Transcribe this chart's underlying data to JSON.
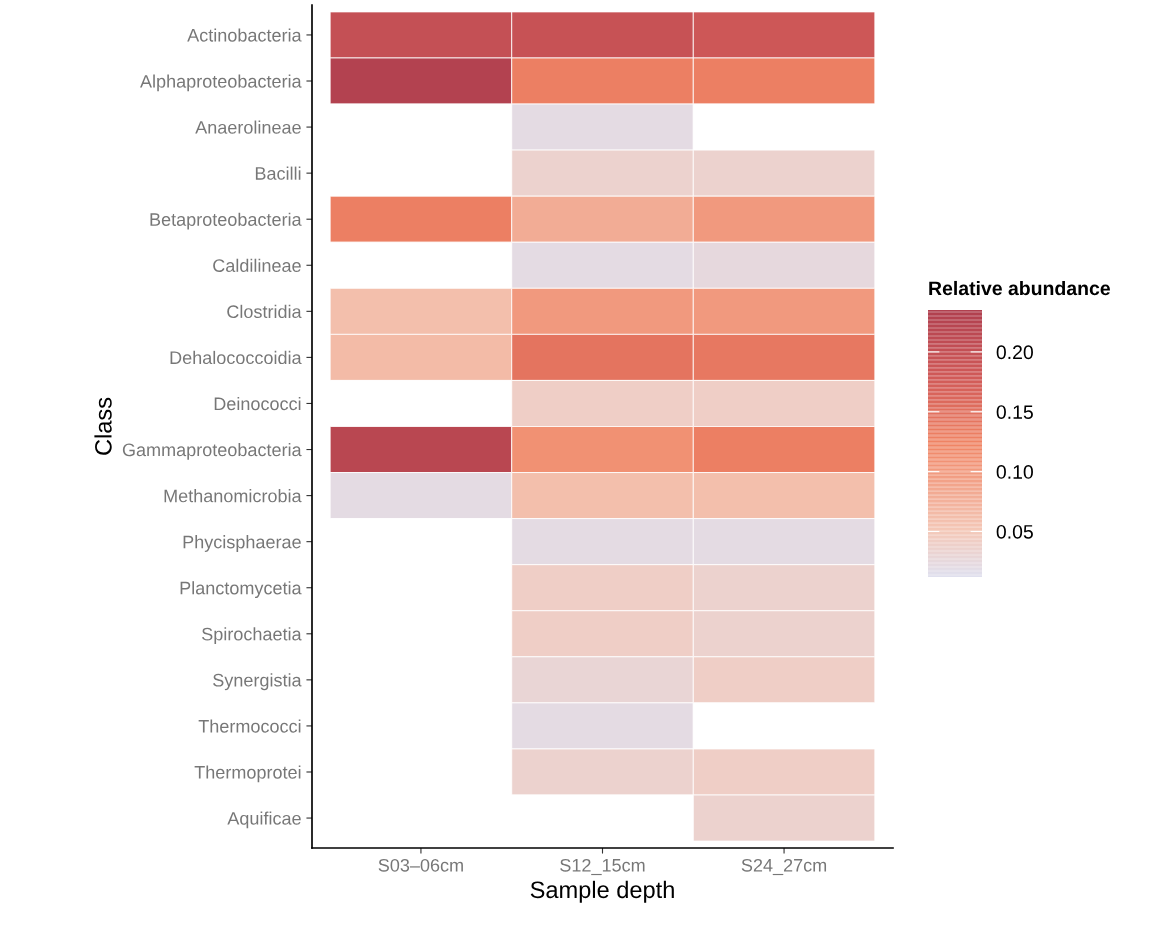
{
  "chart_data": {
    "type": "heatmap",
    "xlabel": "Sample depth",
    "ylabel": "Class",
    "clabel": "Relative abundance",
    "categories": [
      "S03–06cm",
      "S12_15cm",
      "S24_27cm"
    ],
    "y_categories": [
      "Actinobacteria",
      "Alphaproteobacteria",
      "Anaerolineae",
      "Bacilli",
      "Betaproteobacteria",
      "Caldilineae",
      "Clostridia",
      "Dehalococcoidia",
      "Deinococci",
      "Gammaproteobacteria",
      "Methanomicrobia",
      "Phycisphaerae",
      "Planctomycetia",
      "Spirochaetia",
      "Synergistia",
      "Thermococci",
      "Thermoprotei",
      "Aquificae"
    ],
    "cells": [
      [
        0.2,
        0.195,
        0.185
      ],
      [
        0.23,
        0.13,
        0.13
      ],
      [
        null,
        0.02,
        null
      ],
      [
        null,
        0.035,
        0.035
      ],
      [
        0.13,
        0.08,
        0.1
      ],
      [
        null,
        0.02,
        0.025
      ],
      [
        0.06,
        0.1,
        0.1
      ],
      [
        0.065,
        0.145,
        0.14
      ],
      [
        null,
        0.04,
        0.04
      ],
      [
        0.22,
        0.11,
        0.13
      ],
      [
        0.02,
        0.06,
        0.06
      ],
      [
        null,
        0.02,
        0.02
      ],
      [
        null,
        0.04,
        0.035
      ],
      [
        null,
        0.04,
        0.035
      ],
      [
        null,
        0.03,
        0.04
      ],
      [
        null,
        0.02,
        null
      ],
      [
        null,
        0.035,
        0.04
      ],
      [
        null,
        null,
        0.035
      ]
    ],
    "clim": [
      0.012,
      0.235
    ],
    "cticks": [
      {
        "value": 0.05,
        "label": "0.05"
      },
      {
        "value": 0.1,
        "label": "0.10"
      },
      {
        "value": 0.15,
        "label": "0.15"
      },
      {
        "value": 0.2,
        "label": "0.20"
      }
    ],
    "grid": false
  }
}
